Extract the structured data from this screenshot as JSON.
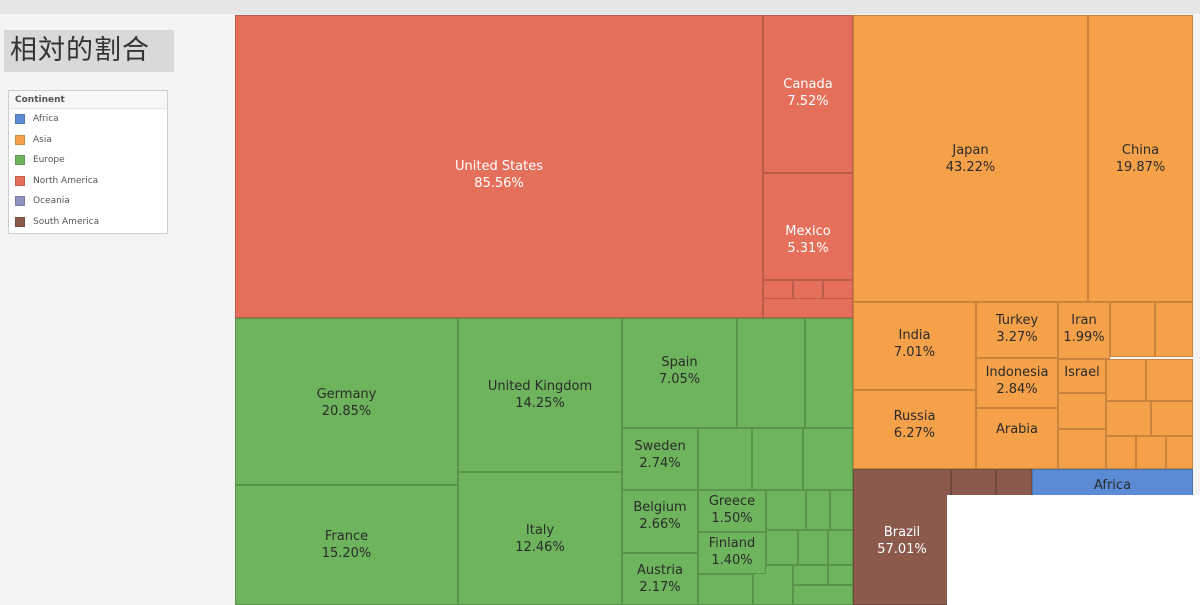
{
  "page": {
    "title": "相対的割合"
  },
  "legend": {
    "title": "Continent",
    "items": [
      {
        "label": "Africa",
        "color": "#5b8bd4"
      },
      {
        "label": "Asia",
        "color": "#f4a14a"
      },
      {
        "label": "Europe",
        "color": "#6eb45c"
      },
      {
        "label": "North America",
        "color": "#e4705b"
      },
      {
        "label": "Oceania",
        "color": "#8f93bf"
      },
      {
        "label": "South America",
        "color": "#8b5a4c"
      }
    ]
  },
  "chart_data": {
    "type": "treemap",
    "title": "相対的割合",
    "legend_title": "Continent",
    "legend_placement": "left",
    "grid": false,
    "colors": {
      "Africa": "#5b8bd4",
      "Asia": "#f4a14a",
      "Europe": "#6eb45c",
      "North America": "#e4705b",
      "Oceania": "#8f93bf",
      "South America": "#8b5a4c"
    },
    "groups": [
      {
        "name": "North America",
        "items": [
          {
            "name": "United States",
            "value": 85.56
          },
          {
            "name": "Canada",
            "value": 7.52
          },
          {
            "name": "Mexico",
            "value": 5.31
          }
        ]
      },
      {
        "name": "Asia",
        "items": [
          {
            "name": "Japan",
            "value": 43.22
          },
          {
            "name": "China",
            "value": 19.87
          },
          {
            "name": "India",
            "value": 7.01
          },
          {
            "name": "Russia",
            "value": 6.27
          },
          {
            "name": "Turkey",
            "value": 3.27
          },
          {
            "name": "Indonesia",
            "value": 2.84
          },
          {
            "name": "Iran",
            "value": 1.99
          },
          {
            "name": "Israel",
            "value": null
          },
          {
            "name": "Arabia",
            "value": null
          }
        ]
      },
      {
        "name": "Europe",
        "items": [
          {
            "name": "Germany",
            "value": 20.85
          },
          {
            "name": "France",
            "value": 15.2
          },
          {
            "name": "United Kingdom",
            "value": 14.25
          },
          {
            "name": "Italy",
            "value": 12.46
          },
          {
            "name": "Spain",
            "value": 7.05
          },
          {
            "name": "Sweden",
            "value": 2.74
          },
          {
            "name": "Belgium",
            "value": 2.66
          },
          {
            "name": "Austria",
            "value": 2.17
          },
          {
            "name": "Greece",
            "value": 1.5
          },
          {
            "name": "Finland",
            "value": 1.4
          }
        ]
      },
      {
        "name": "South America",
        "items": [
          {
            "name": "Brazil",
            "value": 57.01
          }
        ]
      },
      {
        "name": "Africa",
        "items": [
          {
            "name": "Africa",
            "value": null
          }
        ]
      }
    ]
  }
}
